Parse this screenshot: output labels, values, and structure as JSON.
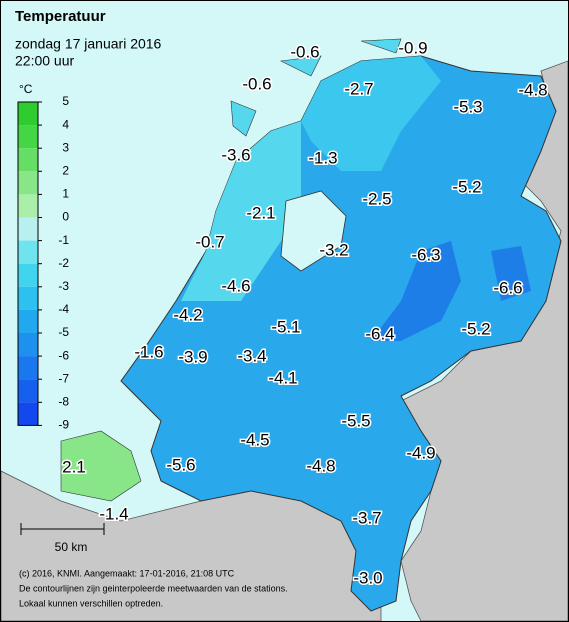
{
  "header": {
    "title": "Temperatuur",
    "date": "zondag 17 januari 2016",
    "time": "22:00 uur"
  },
  "legend": {
    "unit": "°C",
    "ticks": [
      5,
      4,
      3,
      2,
      1,
      0,
      -1,
      -2,
      -3,
      -4,
      -5,
      -6,
      -7,
      -8,
      -9
    ],
    "colors": [
      "#2ecc2e",
      "#44d644",
      "#66de66",
      "#88e688",
      "#aaeeaa",
      "#b8f0f0",
      "#70e4ee",
      "#40d4ee",
      "#2ec0ee",
      "#22a8ee",
      "#1e90ee",
      "#1a78ee",
      "#1660ee",
      "#1248ee"
    ]
  },
  "stations": [
    "-0.6",
    "-0.9",
    "-0.6",
    "-2.7",
    "-5.3",
    "-4.8",
    "-3.6",
    "-1.3",
    "-2.5",
    "-5.2",
    "-2.1",
    "-0.7",
    "-3.2",
    "-6.3",
    "-6.6",
    "-4.6",
    "-4.2",
    "-5.1",
    "-6.4",
    "-5.2",
    "-1.6",
    "-3.9",
    "-3.4",
    "-4.1",
    "-5.5",
    "-4.5",
    "-4.9",
    "-5.6",
    "-4.8",
    "2.1",
    "-1.4",
    "-3.7",
    "-3.0"
  ],
  "scale": "50 km",
  "footer": [
    "(c) 2016, KNMI. Aangemaakt: 17-01-2016, 21:08 UTC",
    "De contourlijnen zijn geinterpoleerde meetwaarden van de stations.",
    "Lokaal kunnen verschillen optreden."
  ]
}
